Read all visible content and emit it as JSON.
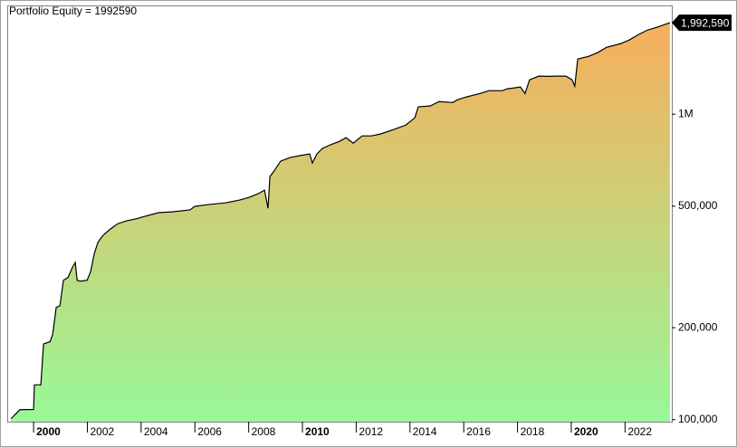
{
  "chart_data": {
    "type": "area",
    "title": "Portfolio Equity = 1992590",
    "log_y": true,
    "line_color": "#000000",
    "fill_top_color": "#f8ae5c",
    "fill_bottom_color": "#98f898",
    "xlim": [
      1999.02,
      2023.74
    ],
    "xticks": [
      {
        "value": 2000,
        "label": "2000"
      },
      {
        "value": 2002,
        "label": "2002"
      },
      {
        "value": 2004,
        "label": "2004"
      },
      {
        "value": 2006,
        "label": "2006"
      },
      {
        "value": 2008,
        "label": "2008"
      },
      {
        "value": 2010,
        "label": "2010"
      },
      {
        "value": 2012,
        "label": "2012"
      },
      {
        "value": 2014,
        "label": "2014"
      },
      {
        "value": 2016,
        "label": "2016"
      },
      {
        "value": 2018,
        "label": "2018"
      },
      {
        "value": 2020,
        "label": "2020"
      },
      {
        "value": 2022,
        "label": "2022"
      }
    ],
    "ylim": [
      98500,
      2270000
    ],
    "yticks": [
      {
        "value": 100000,
        "label": "100,000"
      },
      {
        "value": 200000,
        "label": "200,000"
      },
      {
        "value": 500000,
        "label": "500,000"
      },
      {
        "value": 1000000,
        "label": "1M"
      }
    ],
    "end_label": {
      "value": 1992590,
      "label": "1,992,590"
    },
    "x": [
      1999.16,
      1999.49,
      2000,
      2000.03,
      2000.27,
      2000.37,
      2000.61,
      2000.71,
      2000.84,
      2000.98,
      2001.11,
      2001.28,
      2001.45,
      2001.55,
      2001.62,
      2001.72,
      2001.99,
      2002.12,
      2002.26,
      2002.39,
      2002.53,
      2002.66,
      2002.86,
      2003.13,
      2003.47,
      2003.8,
      2004.14,
      2004.65,
      2005.15,
      2005.82,
      2005.99,
      2006.5,
      2007.17,
      2007.68,
      2008.01,
      2008.35,
      2008.59,
      2008.72,
      2008.79,
      2008.92,
      2009.19,
      2009.53,
      2009.87,
      2010.27,
      2010.37,
      2010.54,
      2010.74,
      2011.04,
      2011.38,
      2011.62,
      2011.89,
      2012.22,
      2012.56,
      2012.9,
      2013.4,
      2013.84,
      2014.18,
      2014.31,
      2014.75,
      2015.08,
      2015.59,
      2015.76,
      2016.09,
      2016.6,
      2016.94,
      2017.44,
      2017.61,
      2018.11,
      2018.28,
      2018.45,
      2018.79,
      2019.12,
      2019.46,
      2019.8,
      2020.03,
      2020.13,
      2020.24,
      2020.64,
      2020.98,
      2021.31,
      2021.82,
      2022.15,
      2022.49,
      2022.83,
      2023.17,
      2023.67
    ],
    "values": [
      100700,
      107800,
      108000,
      130000,
      130000,
      177000,
      180000,
      190000,
      233000,
      236000,
      286000,
      292000,
      316000,
      327000,
      286000,
      284000,
      286000,
      305000,
      350000,
      380000,
      396000,
      407000,
      421000,
      438000,
      448000,
      454000,
      463000,
      476000,
      479000,
      486000,
      499000,
      506000,
      513000,
      524000,
      534000,
      549000,
      564000,
      492000,
      625000,
      647000,
      702000,
      721000,
      731000,
      741000,
      692000,
      741000,
      772000,
      794000,
      815000,
      838000,
      804000,
      849000,
      849000,
      861000,
      891000,
      921000,
      973000,
      1057000,
      1064000,
      1100000,
      1092000,
      1114000,
      1138000,
      1169000,
      1194000,
      1194000,
      1210000,
      1227000,
      1169000,
      1296000,
      1332000,
      1330000,
      1332000,
      1332000,
      1296000,
      1235000,
      1515000,
      1546000,
      1590000,
      1655000,
      1700000,
      1748000,
      1820000,
      1885000,
      1923000,
      1992590
    ]
  }
}
